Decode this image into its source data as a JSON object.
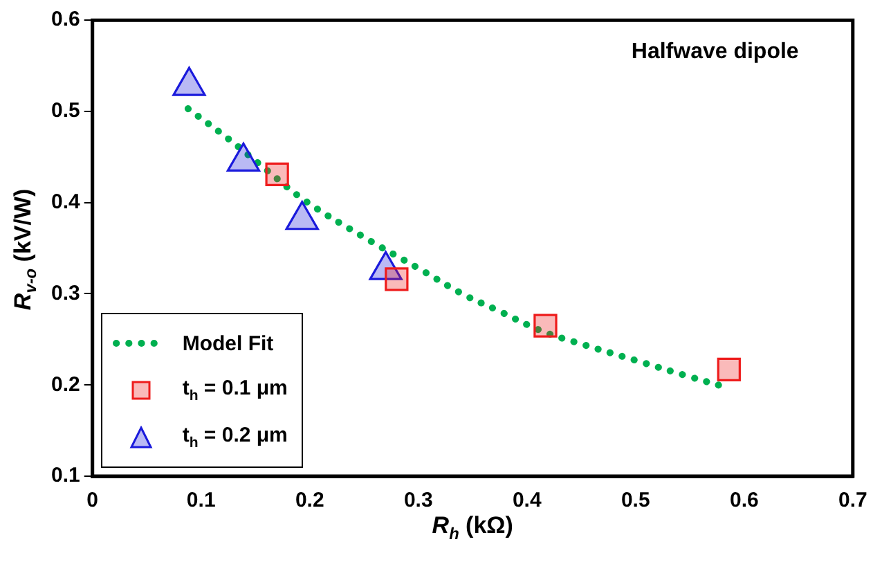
{
  "chart_data": {
    "type": "scatter",
    "xlabel": "R$_{h}$ (kΩ)",
    "ylabel": "R$_{v-o}$ (kV/W)",
    "annotations": [
      "Halfwave dipole"
    ],
    "xlim": [
      0,
      0.7
    ],
    "xticks": [
      0,
      0.1,
      0.2,
      0.3,
      0.4,
      0.5,
      0.6,
      0.7
    ],
    "ylim": [
      0.1,
      0.6
    ],
    "yticks": [
      0.1,
      0.2,
      0.3,
      0.4,
      0.5,
      0.6
    ],
    "grid": false,
    "legend": "bottom left",
    "series": [
      {
        "name": "Model Fit",
        "type": "line",
        "line_style": "dotted",
        "marker": "none",
        "color": "#00b050",
        "x": [
          0.088,
          0.125,
          0.16,
          0.197,
          0.25,
          0.3,
          0.342,
          0.371,
          0.414,
          0.45,
          0.5,
          0.55,
          0.579
        ],
        "values": [
          0.503,
          0.47,
          0.436,
          0.401,
          0.362,
          0.328,
          0.299,
          0.283,
          0.259,
          0.245,
          0.227,
          0.209,
          0.199
        ]
      },
      {
        "name": "t$_{h}$ = 0.1 μm",
        "type": "scatter",
        "marker": "square",
        "color": "#ee1c1c",
        "x": [
          0.17,
          0.28,
          0.417,
          0.586
        ],
        "values": [
          0.431,
          0.316,
          0.265,
          0.217
        ]
      },
      {
        "name": "t$_{h}$ = 0.2 μm",
        "type": "scatter",
        "marker": "triangle",
        "color": "#1a1adc",
        "x": [
          0.089,
          0.139,
          0.193,
          0.27
        ],
        "values": [
          0.528,
          0.445,
          0.381,
          0.326
        ]
      }
    ]
  }
}
